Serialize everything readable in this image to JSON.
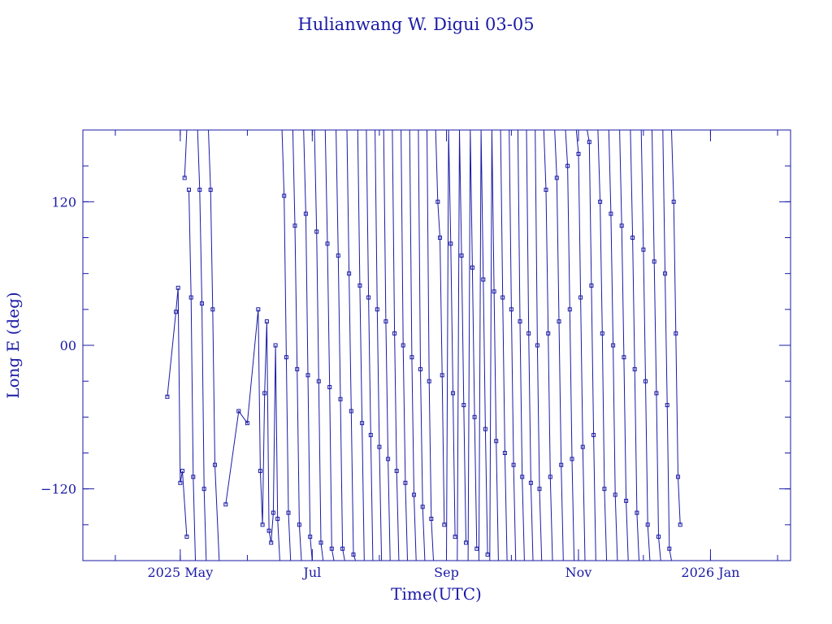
{
  "chart_data": {
    "type": "line",
    "title": "Hulianwang W. Digui 03-05",
    "xlabel": "Time(UTC)",
    "ylabel": "Long E (deg)",
    "color": "#1a1aa6",
    "markers": "open-square",
    "grid": false,
    "xlim": [
      "2025-03-17",
      "2026-02-07"
    ],
    "ylim": [
      -180,
      180
    ],
    "x_ticks": [
      {
        "date": "2025-05-01",
        "label": "2025 May"
      },
      {
        "date": "2025-07-01",
        "label": "Jul"
      },
      {
        "date": "2025-09-01",
        "label": "Sep"
      },
      {
        "date": "2025-11-01",
        "label": "Nov"
      },
      {
        "date": "2026-01-01",
        "label": "2026 Jan"
      }
    ],
    "y_ticks": [
      {
        "value": 120,
        "label": "120"
      },
      {
        "value": 0,
        "label": "00"
      },
      {
        "value": -120,
        "label": "−120"
      }
    ],
    "series": [
      {
        "segments": [
          [
            [
              "2025-04-25",
              -43
            ],
            [
              "2025-04-29",
              28
            ],
            [
              "2025-04-30",
              48
            ],
            [
              "2025-05-01",
              -115
            ],
            [
              "2025-05-02",
              -105
            ],
            [
              "2025-05-04",
              -160
            ]
          ],
          [
            [
              "2025-05-03",
              140
            ],
            [
              "2025-05-04",
              180
            ]
          ],
          [
            [
              "2025-05-05",
              130
            ],
            [
              "2025-05-06",
              40
            ],
            [
              "2025-05-07",
              -110
            ],
            [
              "2025-05-08",
              -180
            ]
          ],
          [
            [
              "2025-05-09",
              180
            ],
            [
              "2025-05-10",
              130
            ],
            [
              "2025-05-11",
              35
            ],
            [
              "2025-05-12",
              -120
            ],
            [
              "2025-05-13",
              -180
            ]
          ],
          [
            [
              "2025-05-14",
              180
            ],
            [
              "2025-05-15",
              130
            ],
            [
              "2025-05-16",
              30
            ],
            [
              "2025-05-17",
              -100
            ],
            [
              "2025-05-19",
              -180
            ]
          ],
          [
            [
              "2025-05-22",
              -133
            ],
            [
              "2025-05-28",
              -55
            ],
            [
              "2025-06-01",
              -65
            ],
            [
              "2025-06-06",
              30
            ],
            [
              "2025-06-07",
              -105
            ],
            [
              "2025-06-08",
              -150
            ],
            [
              "2025-06-09",
              -40
            ],
            [
              "2025-06-10",
              20
            ],
            [
              "2025-06-11",
              -155
            ],
            [
              "2025-06-12",
              -165
            ],
            [
              "2025-06-13",
              -140
            ],
            [
              "2025-06-14",
              0
            ],
            [
              "2025-06-15",
              -145
            ],
            [
              "2025-06-16",
              -180
            ]
          ],
          [
            [
              "2025-06-17",
              180
            ],
            [
              "2025-06-18",
              125
            ],
            [
              "2025-06-19",
              -10
            ],
            [
              "2025-06-20",
              -140
            ],
            [
              "2025-06-21",
              -180
            ]
          ],
          [
            [
              "2025-06-22",
              180
            ],
            [
              "2025-06-23",
              100
            ],
            [
              "2025-06-24",
              -20
            ],
            [
              "2025-06-25",
              -150
            ],
            [
              "2025-06-26",
              -180
            ]
          ],
          [
            [
              "2025-06-27",
              180
            ],
            [
              "2025-06-28",
              110
            ],
            [
              "2025-06-29",
              -25
            ],
            [
              "2025-06-30",
              -160
            ],
            [
              "2025-07-01",
              -180
            ]
          ],
          [
            [
              "2025-07-02",
              180
            ],
            [
              "2025-07-03",
              95
            ],
            [
              "2025-07-04",
              -30
            ],
            [
              "2025-07-05",
              -165
            ],
            [
              "2025-07-06",
              -180
            ]
          ],
          [
            [
              "2025-07-07",
              180
            ],
            [
              "2025-07-08",
              85
            ],
            [
              "2025-07-09",
              -35
            ],
            [
              "2025-07-10",
              -170
            ],
            [
              "2025-07-11",
              -180
            ]
          ],
          [
            [
              "2025-07-12",
              180
            ],
            [
              "2025-07-13",
              75
            ],
            [
              "2025-07-14",
              -45
            ],
            [
              "2025-07-15",
              -170
            ],
            [
              "2025-07-16",
              -180
            ]
          ],
          [
            [
              "2025-07-17",
              180
            ],
            [
              "2025-07-18",
              60
            ],
            [
              "2025-07-19",
              -55
            ],
            [
              "2025-07-20",
              -175
            ],
            [
              "2025-07-21",
              -180
            ]
          ],
          [
            [
              "2025-07-22",
              180
            ],
            [
              "2025-07-23",
              50
            ],
            [
              "2025-07-24",
              -65
            ],
            [
              "2025-07-25",
              -180
            ]
          ],
          [
            [
              "2025-07-26",
              180
            ],
            [
              "2025-07-27",
              40
            ],
            [
              "2025-07-28",
              -75
            ],
            [
              "2025-07-29",
              -180
            ]
          ],
          [
            [
              "2025-07-30",
              180
            ],
            [
              "2025-07-31",
              30
            ],
            [
              "2025-08-01",
              -85
            ],
            [
              "2025-08-02",
              -180
            ]
          ],
          [
            [
              "2025-08-03",
              180
            ],
            [
              "2025-08-04",
              20
            ],
            [
              "2025-08-05",
              -95
            ],
            [
              "2025-08-06",
              -180
            ]
          ],
          [
            [
              "2025-08-07",
              180
            ],
            [
              "2025-08-08",
              10
            ],
            [
              "2025-08-09",
              -105
            ],
            [
              "2025-08-10",
              -180
            ]
          ],
          [
            [
              "2025-08-11",
              180
            ],
            [
              "2025-08-12",
              0
            ],
            [
              "2025-08-13",
              -115
            ],
            [
              "2025-08-14",
              -180
            ]
          ],
          [
            [
              "2025-08-15",
              180
            ],
            [
              "2025-08-16",
              -10
            ],
            [
              "2025-08-17",
              -125
            ],
            [
              "2025-08-18",
              -180
            ]
          ],
          [
            [
              "2025-08-19",
              180
            ],
            [
              "2025-08-20",
              -20
            ],
            [
              "2025-08-21",
              -135
            ],
            [
              "2025-08-22",
              -180
            ]
          ],
          [
            [
              "2025-08-23",
              180
            ],
            [
              "2025-08-24",
              -30
            ],
            [
              "2025-08-25",
              -145
            ],
            [
              "2025-08-26",
              -180
            ]
          ],
          [
            [
              "2025-08-27",
              180
            ],
            [
              "2025-08-28",
              120
            ],
            [
              "2025-08-29",
              90
            ],
            [
              "2025-08-30",
              -25
            ],
            [
              "2025-08-31",
              -150
            ]
          ],
          [
            [
              "2025-09-01",
              -180
            ],
            [
              "2025-09-02",
              180
            ],
            [
              "2025-09-03",
              85
            ],
            [
              "2025-09-04",
              -40
            ],
            [
              "2025-09-05",
              -160
            ]
          ],
          [
            [
              "2025-09-06",
              -180
            ],
            [
              "2025-09-07",
              180
            ],
            [
              "2025-09-08",
              75
            ],
            [
              "2025-09-09",
              -50
            ],
            [
              "2025-09-10",
              -165
            ]
          ],
          [
            [
              "2025-09-11",
              -180
            ],
            [
              "2025-09-12",
              180
            ],
            [
              "2025-09-13",
              65
            ],
            [
              "2025-09-14",
              -60
            ],
            [
              "2025-09-15",
              -170
            ]
          ],
          [
            [
              "2025-09-16",
              -180
            ],
            [
              "2025-09-17",
              180
            ],
            [
              "2025-09-18",
              55
            ],
            [
              "2025-09-19",
              -70
            ],
            [
              "2025-09-20",
              -175
            ]
          ],
          [
            [
              "2025-09-21",
              -180
            ],
            [
              "2025-09-22",
              180
            ],
            [
              "2025-09-23",
              45
            ],
            [
              "2025-09-24",
              -80
            ],
            [
              "2025-09-25",
              -180
            ]
          ],
          [
            [
              "2025-09-26",
              180
            ],
            [
              "2025-09-27",
              40
            ],
            [
              "2025-09-28",
              -90
            ],
            [
              "2025-09-29",
              -180
            ]
          ],
          [
            [
              "2025-09-30",
              180
            ],
            [
              "2025-10-01",
              30
            ],
            [
              "2025-10-02",
              -100
            ],
            [
              "2025-10-03",
              -180
            ]
          ],
          [
            [
              "2025-10-04",
              180
            ],
            [
              "2025-10-05",
              20
            ],
            [
              "2025-10-06",
              -110
            ],
            [
              "2025-10-07",
              -180
            ]
          ],
          [
            [
              "2025-10-08",
              180
            ],
            [
              "2025-10-09",
              10
            ],
            [
              "2025-10-10",
              -115
            ],
            [
              "2025-10-11",
              -180
            ]
          ],
          [
            [
              "2025-10-12",
              180
            ],
            [
              "2025-10-13",
              0
            ],
            [
              "2025-10-14",
              -120
            ],
            [
              "2025-10-15",
              -180
            ]
          ],
          [
            [
              "2025-10-16",
              180
            ],
            [
              "2025-10-17",
              130
            ],
            [
              "2025-10-18",
              10
            ],
            [
              "2025-10-19",
              -110
            ],
            [
              "2025-10-20",
              -180
            ]
          ],
          [
            [
              "2025-10-21",
              180
            ],
            [
              "2025-10-22",
              140
            ],
            [
              "2025-10-23",
              20
            ],
            [
              "2025-10-24",
              -100
            ],
            [
              "2025-10-25",
              -180
            ]
          ],
          [
            [
              "2025-10-26",
              180
            ],
            [
              "2025-10-27",
              150
            ],
            [
              "2025-10-28",
              30
            ],
            [
              "2025-10-29",
              -95
            ],
            [
              "2025-10-30",
              -180
            ]
          ],
          [
            [
              "2025-10-31",
              180
            ],
            [
              "2025-11-01",
              160
            ],
            [
              "2025-11-02",
              40
            ],
            [
              "2025-11-03",
              -85
            ],
            [
              "2025-11-04",
              -180
            ]
          ],
          [
            [
              "2025-11-05",
              180
            ],
            [
              "2025-11-06",
              170
            ],
            [
              "2025-11-07",
              50
            ],
            [
              "2025-11-08",
              -75
            ],
            [
              "2025-11-09",
              -180
            ]
          ],
          [
            [
              "2025-11-10",
              180
            ],
            [
              "2025-11-11",
              120
            ],
            [
              "2025-11-12",
              10
            ],
            [
              "2025-11-13",
              -120
            ],
            [
              "2025-11-14",
              -180
            ]
          ],
          [
            [
              "2025-11-15",
              180
            ],
            [
              "2025-11-16",
              110
            ],
            [
              "2025-11-17",
              0
            ],
            [
              "2025-11-18",
              -125
            ],
            [
              "2025-11-19",
              -180
            ]
          ],
          [
            [
              "2025-11-20",
              180
            ],
            [
              "2025-11-21",
              100
            ],
            [
              "2025-11-22",
              -10
            ],
            [
              "2025-11-23",
              -130
            ],
            [
              "2025-11-24",
              -180
            ]
          ],
          [
            [
              "2025-11-25",
              180
            ],
            [
              "2025-11-26",
              90
            ],
            [
              "2025-11-27",
              -20
            ],
            [
              "2025-11-28",
              -140
            ],
            [
              "2025-11-29",
              -180
            ]
          ],
          [
            [
              "2025-11-30",
              180
            ],
            [
              "2025-12-01",
              80
            ],
            [
              "2025-12-02",
              -30
            ],
            [
              "2025-12-03",
              -150
            ],
            [
              "2025-12-04",
              -180
            ]
          ],
          [
            [
              "2025-12-05",
              180
            ],
            [
              "2025-12-06",
              70
            ],
            [
              "2025-12-07",
              -40
            ],
            [
              "2025-12-08",
              -160
            ],
            [
              "2025-12-09",
              -180
            ]
          ],
          [
            [
              "2025-12-10",
              180
            ],
            [
              "2025-12-11",
              60
            ],
            [
              "2025-12-12",
              -50
            ],
            [
              "2025-12-13",
              -170
            ],
            [
              "2025-12-14",
              -180
            ]
          ],
          [
            [
              "2025-12-14",
              180
            ],
            [
              "2025-12-15",
              120
            ],
            [
              "2025-12-16",
              10
            ],
            [
              "2025-12-17",
              -110
            ],
            [
              "2025-12-18",
              -150
            ]
          ]
        ]
      }
    ]
  }
}
